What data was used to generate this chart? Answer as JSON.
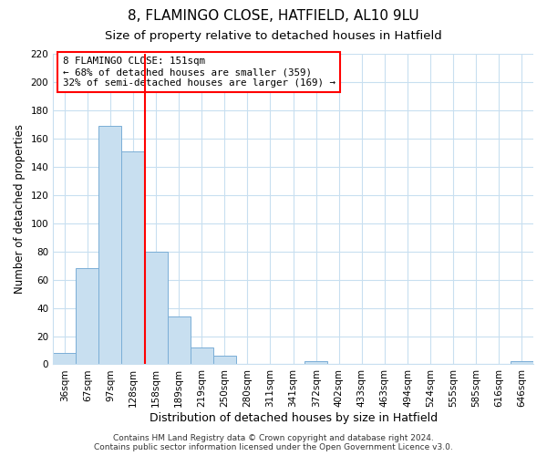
{
  "title": "8, FLAMINGO CLOSE, HATFIELD, AL10 9LU",
  "subtitle": "Size of property relative to detached houses in Hatfield",
  "xlabel": "Distribution of detached houses by size in Hatfield",
  "ylabel": "Number of detached properties",
  "bar_labels": [
    "36sqm",
    "67sqm",
    "97sqm",
    "128sqm",
    "158sqm",
    "189sqm",
    "219sqm",
    "250sqm",
    "280sqm",
    "311sqm",
    "341sqm",
    "372sqm",
    "402sqm",
    "433sqm",
    "463sqm",
    "494sqm",
    "524sqm",
    "555sqm",
    "585sqm",
    "616sqm",
    "646sqm"
  ],
  "bar_values": [
    8,
    68,
    169,
    151,
    80,
    34,
    12,
    6,
    0,
    0,
    0,
    2,
    0,
    0,
    0,
    0,
    0,
    0,
    0,
    0,
    2
  ],
  "bar_color": "#c8dff0",
  "bar_edge_color": "#7aaed6",
  "grid_color": "#c8dff0",
  "vline_color": "red",
  "vline_x_idx": 3.5,
  "annotation_title": "8 FLAMINGO CLOSE: 151sqm",
  "annotation_line1": "← 68% of detached houses are smaller (359)",
  "annotation_line2": "32% of semi-detached houses are larger (169) →",
  "annotation_box_color": "white",
  "annotation_box_edge": "red",
  "ylim": [
    0,
    220
  ],
  "yticks": [
    0,
    20,
    40,
    60,
    80,
    100,
    120,
    140,
    160,
    180,
    200,
    220
  ],
  "footer1": "Contains HM Land Registry data © Crown copyright and database right 2024.",
  "footer2": "Contains public sector information licensed under the Open Government Licence v3.0.",
  "title_fontsize": 11,
  "subtitle_fontsize": 9.5,
  "xlabel_fontsize": 9,
  "ylabel_fontsize": 8.5,
  "tick_fontsize": 7.5,
  "annotation_fontsize": 7.8,
  "footer_fontsize": 6.5
}
